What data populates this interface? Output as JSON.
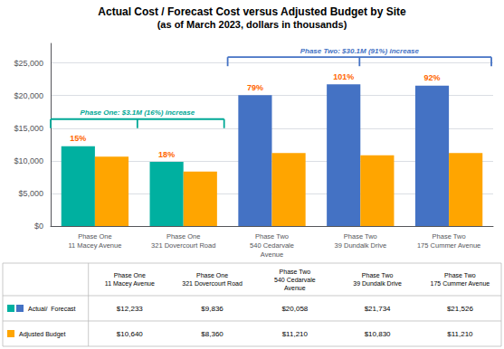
{
  "chart_data": {
    "type": "bar",
    "title": "Actual Cost / Forecast Cost versus Adjusted Budget by Site",
    "subtitle": "(as of March 2023, dollars in thousands)",
    "categories": [
      "Phase One\n11 Macey Avenue",
      "Phase One\n321 Dovercourt Road",
      "Phase Two\n540 Cedarvale\nAvenue",
      "Phase Two\n39 Dundalk Drive",
      "Phase Two\n175 Cummer Avenue"
    ],
    "series": [
      {
        "name": "Actual/  Forecast",
        "values": [
          12233,
          9836,
          20058,
          21734,
          21526
        ],
        "colors": [
          "#00B0A0",
          "#00B0A0",
          "#4472C4",
          "#4472C4",
          "#4472C4"
        ]
      },
      {
        "name": "Adjusted Budget",
        "values": [
          10640,
          8360,
          11210,
          10830,
          11210
        ],
        "color": "#FFA500"
      }
    ],
    "ylim": [
      0,
      28000
    ],
    "yticks": [
      {
        "value": 0,
        "label": "$0"
      },
      {
        "value": 5000,
        "label": "$5,000"
      },
      {
        "value": 10000,
        "label": "$10,000"
      },
      {
        "value": 15000,
        "label": "$15,000"
      },
      {
        "value": 20000,
        "label": "$20,000"
      },
      {
        "value": 25000,
        "label": "$25,000"
      }
    ],
    "grid": true,
    "annotations": [
      {
        "text": "15%",
        "category": "Phase One\n11 Macey Avenue",
        "series": "Actual/  Forecast",
        "color": "#FF6600"
      },
      {
        "text": "18%",
        "category": "Phase One\n321 Dovercourt Road",
        "series": "Actual/  Forecast",
        "color": "#FF6600"
      },
      {
        "text": "79%",
        "category": "Phase Two\n540 Cedarvale\nAvenue",
        "series": "Actual/  Forecast",
        "color": "#FF6600"
      },
      {
        "text": "101%",
        "category": "Phase Two\n39 Dundalk Drive",
        "series": "Actual/  Forecast",
        "color": "#FF6600"
      },
      {
        "text": "92%",
        "category": "Phase Two\n175 Cummer Avenue",
        "series": "Actual/  Forecast",
        "color": "#FF6600"
      },
      {
        "text": "Phase One: $3.1M (16%) increase",
        "categories": [
          "Phase One\n11 Macey Avenue",
          "Phase One\n321 Dovercourt Road"
        ],
        "color": "#00A896"
      },
      {
        "text": "Phase Two: $30.1M (91%) increase",
        "categories": [
          "Phase Two\n540 Cedarvale\nAvenue",
          "Phase Two\n39 Dundalk Drive",
          "Phase Two\n175 Cummer Avenue"
        ],
        "color": "#4472C4"
      }
    ],
    "table": {
      "rows": [
        {
          "series": "Actual/  Forecast",
          "cells": [
            "$12,233",
            "$9,836",
            "$20,058",
            "$21,734",
            "$21,526"
          ]
        },
        {
          "series": "Adjusted Budget",
          "cells": [
            "$10,640",
            "$8,360",
            "$11,210",
            "$10,830",
            "$11,210"
          ]
        }
      ]
    }
  }
}
